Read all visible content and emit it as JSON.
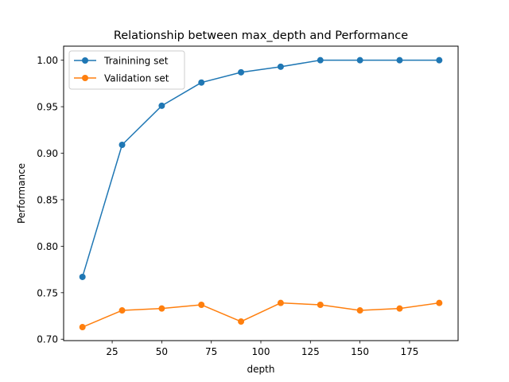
{
  "chart_data": {
    "type": "line",
    "title": "Relationship between max_depth and Performance",
    "xlabel": "depth",
    "ylabel": "Performance",
    "x": [
      10,
      30,
      50,
      70,
      90,
      110,
      130,
      150,
      170,
      190
    ],
    "xlim": [
      0.5,
      199.5
    ],
    "ylim": [
      0.6985,
      1.0151
    ],
    "xticks": [
      25,
      50,
      75,
      100,
      125,
      150,
      175
    ],
    "yticks": [
      0.7,
      0.75,
      0.8,
      0.85,
      0.9,
      0.95,
      1.0
    ],
    "xtick_labels": [
      "25",
      "50",
      "75",
      "100",
      "125",
      "150",
      "175"
    ],
    "ytick_labels": [
      "0.70",
      "0.75",
      "0.80",
      "0.85",
      "0.90",
      "0.95",
      "1.00"
    ],
    "grid": false,
    "legend_position": "top-left",
    "series": [
      {
        "name": "Trainining set",
        "color": "#1f77b4",
        "values": [
          0.767,
          0.909,
          0.951,
          0.976,
          0.987,
          0.993,
          1.0,
          1.0,
          1.0,
          1.0
        ]
      },
      {
        "name": "Validation set",
        "color": "#ff7f0e",
        "values": [
          0.713,
          0.731,
          0.733,
          0.737,
          0.719,
          0.739,
          0.737,
          0.731,
          0.733,
          0.739
        ]
      }
    ]
  }
}
